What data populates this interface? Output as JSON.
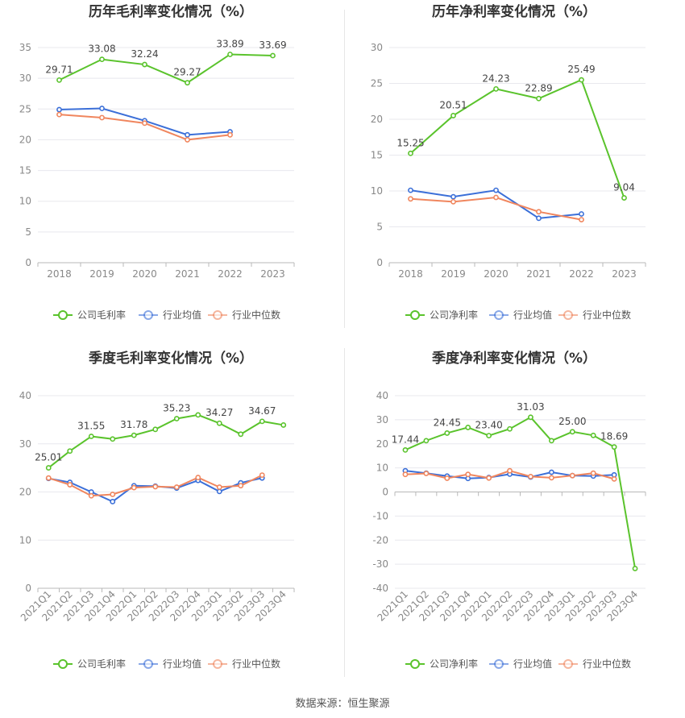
{
  "colors": {
    "company": "#5ac32c",
    "industry_avg": "#3b6fd8",
    "industry_median": "#f0865e",
    "grid": "#e8e8ee",
    "axis_text": "#888888",
    "title_text": "#333333",
    "label_text": "#444444"
  },
  "footer": {
    "source": "数据来源：恒生聚源"
  },
  "chart_data": [
    {
      "id": "annual-gross",
      "type": "line",
      "title": "历年毛利率变化情况（%）",
      "categories": [
        "2018",
        "2019",
        "2020",
        "2021",
        "2022",
        "2023"
      ],
      "ylim": [
        0,
        35
      ],
      "yticks": [
        0,
        5,
        10,
        15,
        20,
        25,
        30,
        35
      ],
      "x_label_rotate": false,
      "legend": [
        "公司毛利率",
        "行业均值",
        "行业中位数"
      ],
      "series": [
        {
          "name": "公司毛利率",
          "key": "company",
          "values": [
            29.71,
            33.08,
            32.24,
            29.27,
            33.89,
            33.69
          ],
          "labels": [
            "29.71",
            "33.08",
            "32.24",
            "29.27",
            "33.89",
            "33.69"
          ],
          "label_pos": [
            "above",
            "above",
            "above",
            "above",
            "above",
            "above"
          ]
        },
        {
          "name": "行业均值",
          "key": "industry_avg",
          "values": [
            24.9,
            25.1,
            23.1,
            20.8,
            21.3,
            null
          ]
        },
        {
          "name": "行业中位数",
          "key": "industry_median",
          "values": [
            24.1,
            23.6,
            22.7,
            20.0,
            20.8,
            null
          ]
        }
      ]
    },
    {
      "id": "annual-net",
      "type": "line",
      "title": "历年净利率变化情况（%）",
      "categories": [
        "2018",
        "2019",
        "2020",
        "2021",
        "2022",
        "2023"
      ],
      "ylim": [
        0,
        30
      ],
      "yticks": [
        0,
        5,
        10,
        15,
        20,
        25,
        30
      ],
      "x_label_rotate": false,
      "legend": [
        "公司净利率",
        "行业均值",
        "行业中位数"
      ],
      "series": [
        {
          "name": "公司净利率",
          "key": "company",
          "values": [
            15.25,
            20.51,
            24.23,
            22.89,
            25.49,
            9.04
          ],
          "labels": [
            "15.25",
            "20.51",
            "24.23",
            "22.89",
            "25.49",
            "9.04"
          ],
          "label_pos": [
            "above",
            "above",
            "above",
            "above",
            "above",
            "above"
          ]
        },
        {
          "name": "行业均值",
          "key": "industry_avg",
          "values": [
            10.1,
            9.2,
            10.1,
            6.2,
            6.8,
            null
          ]
        },
        {
          "name": "行业中位数",
          "key": "industry_median",
          "values": [
            8.9,
            8.5,
            9.1,
            7.1,
            6.0,
            null
          ]
        }
      ]
    },
    {
      "id": "quarterly-gross",
      "type": "line",
      "title": "季度毛利率变化情况（%）",
      "categories": [
        "2021Q1",
        "2021Q2",
        "2021Q3",
        "2021Q4",
        "2022Q1",
        "2022Q2",
        "2022Q3",
        "2022Q4",
        "2023Q1",
        "2023Q2",
        "2023Q3",
        "2023Q4"
      ],
      "ylim": [
        0,
        40
      ],
      "yticks": [
        0,
        10,
        20,
        30,
        40
      ],
      "x_label_rotate": true,
      "legend": [
        "公司毛利率",
        "行业均值",
        "行业中位数"
      ],
      "series": [
        {
          "name": "公司毛利率",
          "key": "company",
          "values": [
            25.01,
            28.5,
            31.55,
            31.0,
            31.78,
            33.0,
            35.23,
            36.0,
            34.27,
            32.0,
            34.67,
            33.9
          ],
          "labels": [
            "25.01",
            "",
            "31.55",
            "",
            "31.78",
            "",
            "35.23",
            "",
            "34.27",
            "",
            "34.67",
            ""
          ],
          "label_pos": [
            "above",
            "above",
            "above",
            "above",
            "above",
            "above",
            "above",
            "above",
            "above",
            "above",
            "above",
            "above"
          ]
        },
        {
          "name": "行业均值",
          "key": "industry_avg",
          "values": [
            22.8,
            22.0,
            20.0,
            18.0,
            21.3,
            21.2,
            20.8,
            22.4,
            20.1,
            21.9,
            22.9,
            null
          ]
        },
        {
          "name": "行业中位数",
          "key": "industry_median",
          "values": [
            22.9,
            21.5,
            19.2,
            19.5,
            20.9,
            21.1,
            21.0,
            23.0,
            21.0,
            21.3,
            23.5,
            null
          ]
        }
      ]
    },
    {
      "id": "quarterly-net",
      "type": "line",
      "title": "季度净利率变化情况（%）",
      "categories": [
        "2021Q1",
        "2021Q2",
        "2021Q3",
        "2021Q4",
        "2022Q1",
        "2022Q2",
        "2022Q3",
        "2022Q4",
        "2023Q1",
        "2023Q2",
        "2023Q3",
        "2023Q4"
      ],
      "ylim": [
        -40,
        40
      ],
      "yticks": [
        -40,
        -30,
        -20,
        -10,
        0,
        10,
        20,
        30,
        40
      ],
      "x_label_rotate": true,
      "legend": [
        "公司净利率",
        "行业均值",
        "行业中位数"
      ],
      "series": [
        {
          "name": "公司净利率",
          "key": "company",
          "values": [
            17.44,
            21.3,
            24.45,
            26.8,
            23.4,
            26.2,
            31.03,
            21.3,
            25.0,
            23.5,
            18.69,
            -31.8
          ],
          "labels": [
            "17.44",
            "",
            "24.45",
            "",
            "23.40",
            "",
            "31.03",
            "",
            "25.00",
            "",
            "18.69",
            ""
          ],
          "label_pos": [
            "above",
            "above",
            "above",
            "above",
            "above",
            "above",
            "above",
            "above",
            "above",
            "above",
            "above",
            "above"
          ]
        },
        {
          "name": "行业均值",
          "key": "industry_avg",
          "values": [
            8.8,
            7.8,
            6.6,
            5.6,
            6.0,
            7.4,
            6.2,
            8.2,
            6.8,
            6.6,
            7.1,
            null
          ]
        },
        {
          "name": "行业中位数",
          "key": "industry_median",
          "values": [
            7.3,
            7.7,
            5.7,
            7.3,
            5.8,
            8.8,
            6.4,
            5.9,
            6.8,
            7.8,
            5.4,
            null
          ]
        }
      ]
    }
  ]
}
